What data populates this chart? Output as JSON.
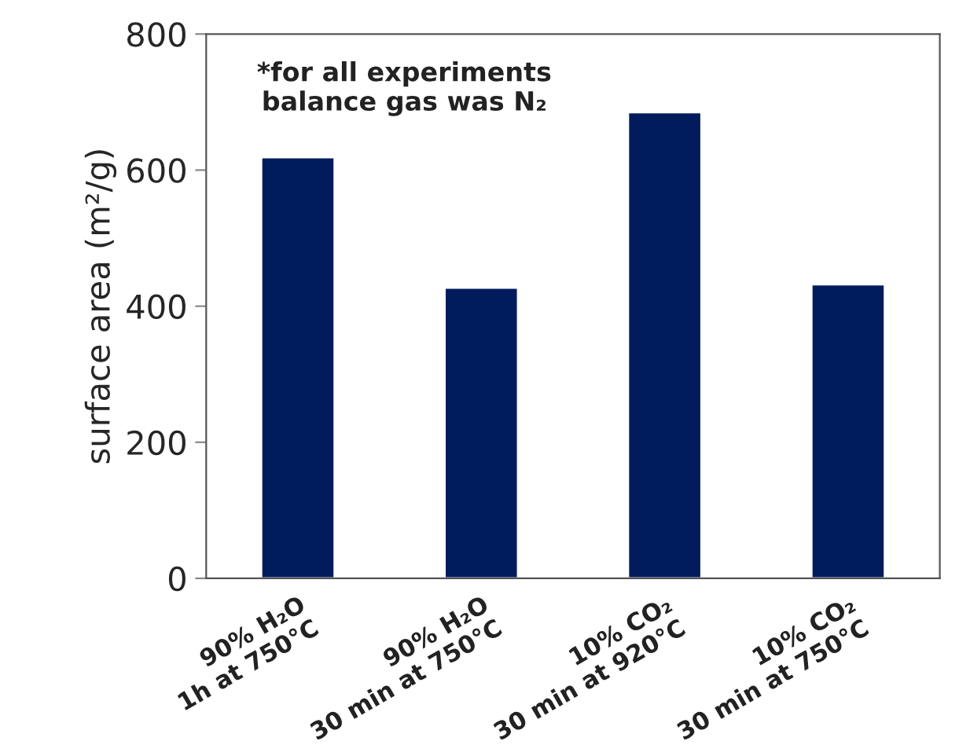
{
  "chart_data": {
    "type": "bar",
    "categories": [
      "90% H₂O\n1h at 750°C",
      "90% H₂O\n30 min at 750°C",
      "10% CO₂\n30 min at 920°C",
      "10% CO₂\n30 min at 750°C"
    ],
    "values": [
      619,
      427,
      685,
      432
    ],
    "color": "#001c5c",
    "ylabel": "surface area (m²/g)",
    "ylim": [
      0,
      800
    ],
    "yticks": [
      0,
      200,
      400,
      600,
      800
    ],
    "annotations": [
      "*for all experiments\nbalance gas was N₂"
    ],
    "grid": false
  }
}
